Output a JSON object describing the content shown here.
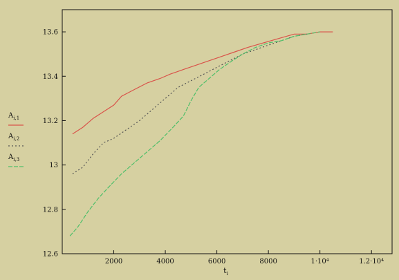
{
  "chart_data": {
    "type": "line",
    "xlabel": "t",
    "xlabel_sub": "i",
    "ylabel": "",
    "xlim": [
      0,
      12800
    ],
    "ylim": [
      12.6,
      13.7
    ],
    "x_ticks": [
      {
        "value": 2000,
        "label": "2000"
      },
      {
        "value": 4000,
        "label": "4000"
      },
      {
        "value": 6000,
        "label": "6000"
      },
      {
        "value": 8000,
        "label": "8000"
      },
      {
        "value": 10000,
        "label": "1·10⁴"
      },
      {
        "value": 12000,
        "label": "1.2·10⁴"
      }
    ],
    "y_ticks": [
      {
        "value": 12.6,
        "label": "12.6"
      },
      {
        "value": 12.8,
        "label": "12.8"
      },
      {
        "value": 13.0,
        "label": "13"
      },
      {
        "value": 13.2,
        "label": "13.2"
      },
      {
        "value": 13.4,
        "label": "13.4"
      },
      {
        "value": 13.6,
        "label": "13.6"
      }
    ],
    "grid": false,
    "legend_position": "left",
    "series": [
      {
        "name": "A",
        "name_sub": "i,1",
        "color": "#d9534a",
        "dash": "",
        "x": [
          400,
          800,
          1200,
          1600,
          2000,
          2300,
          2800,
          3300,
          3800,
          4200,
          4700,
          5200,
          5700,
          6200,
          6700,
          7200,
          7800,
          8400,
          9000,
          9500,
          10000,
          10500
        ],
        "y": [
          13.14,
          13.17,
          13.21,
          13.24,
          13.27,
          13.31,
          13.34,
          13.37,
          13.39,
          13.41,
          13.43,
          13.45,
          13.47,
          13.49,
          13.51,
          13.53,
          13.55,
          13.57,
          13.59,
          13.59,
          13.6,
          13.6
        ]
      },
      {
        "name": "A",
        "name_sub": "i,2",
        "color": "#555555",
        "dash": "2,3",
        "x": [
          400,
          800,
          1200,
          1600,
          2000,
          2500,
          3000,
          3500,
          4000,
          4500,
          5000,
          5500,
          6000,
          6500,
          7000,
          7500,
          8000,
          8500,
          9000,
          9500
        ],
        "y": [
          12.96,
          12.99,
          13.05,
          13.1,
          13.12,
          13.16,
          13.2,
          13.25,
          13.3,
          13.35,
          13.38,
          13.41,
          13.44,
          13.47,
          13.5,
          13.52,
          13.54,
          13.56,
          13.58,
          13.59
        ]
      },
      {
        "name": "A",
        "name_sub": "i,3",
        "color": "#4fbf6a",
        "dash": "6,2",
        "x": [
          300,
          600,
          1000,
          1400,
          1800,
          2300,
          2800,
          3300,
          3800,
          4300,
          4700,
          5000,
          5300,
          5700,
          6100,
          6600,
          7000,
          7500,
          8000,
          8500,
          9000,
          9500,
          10000
        ],
        "y": [
          12.68,
          12.72,
          12.79,
          12.85,
          12.9,
          12.96,
          13.01,
          13.06,
          13.11,
          13.17,
          13.22,
          13.29,
          13.35,
          13.39,
          13.43,
          13.47,
          13.5,
          13.53,
          13.55,
          13.56,
          13.58,
          13.59,
          13.6
        ]
      }
    ]
  }
}
